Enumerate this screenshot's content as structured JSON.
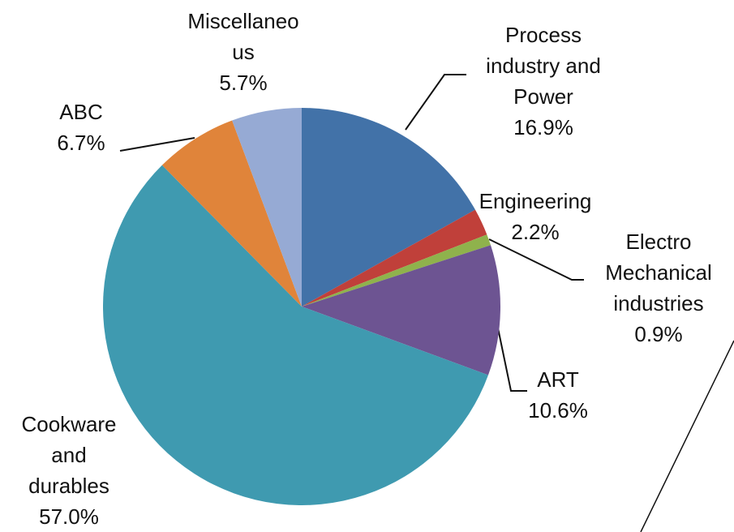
{
  "chart_data": {
    "type": "pie",
    "categories": [
      "Process\nindustry and\nPower",
      "Engineering",
      "Electro\nMechanical\nindustries",
      "ART",
      "Cookware\nand\ndurables",
      "ABC",
      "Miscellaneo\nus"
    ],
    "values": [
      16.9,
      2.2,
      0.9,
      10.6,
      57.0,
      6.7,
      5.7
    ],
    "value_labels": [
      "16.9%",
      "2.2%",
      "0.9%",
      "10.6%",
      "57.0%",
      "6.7%",
      "5.7%"
    ],
    "colors": [
      "#4272a8",
      "#c0403a",
      "#8fb24c",
      "#6d5492",
      "#3f9ab0",
      "#e0843a",
      "#96aad4"
    ]
  }
}
